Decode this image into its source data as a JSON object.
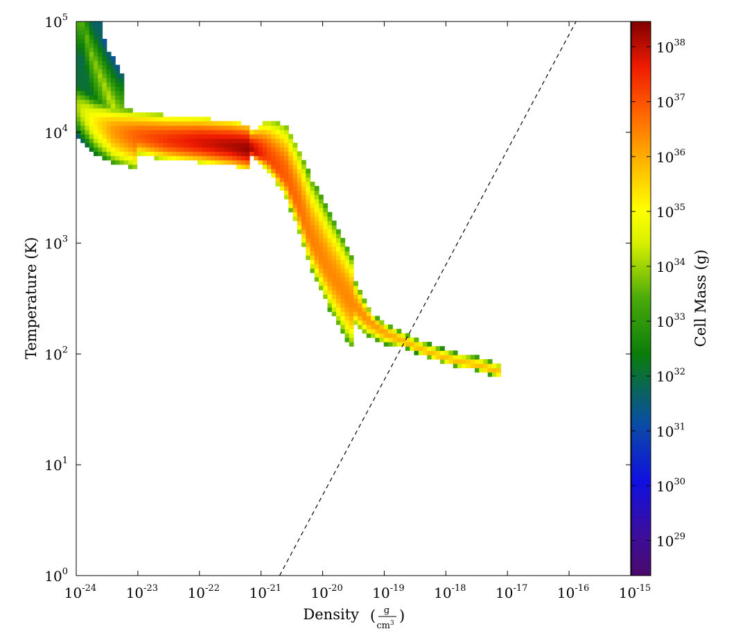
{
  "chart_data": {
    "type": "heatmap",
    "xlabel": "Density",
    "xlabel_unit": {
      "numerator": "g",
      "denominator": "cm",
      "denominator_exp": "3"
    },
    "ylabel": "Temperature  (K)",
    "colorbar_label": "Cell Mass  (g)",
    "x_scale": "log",
    "y_scale": "log",
    "xlim": [
      1e-24,
      1e-15
    ],
    "ylim": [
      1,
      100000
    ],
    "colorbar_range": [
      2.3e+28,
      2.9e+38
    ],
    "colorbar_scale": "log",
    "colormap": "spectral (purple-blue-green-yellow-orange-red-darkred)",
    "x_ticks": [
      {
        "base": "10",
        "exp": "-24",
        "value": 1e-24
      },
      {
        "base": "10",
        "exp": "-23",
        "value": 1e-23
      },
      {
        "base": "10",
        "exp": "-22",
        "value": 1e-22
      },
      {
        "base": "10",
        "exp": "-21",
        "value": 1e-21
      },
      {
        "base": "10",
        "exp": "-20",
        "value": 1e-20
      },
      {
        "base": "10",
        "exp": "-19",
        "value": 1e-19
      },
      {
        "base": "10",
        "exp": "-18",
        "value": 1e-18
      },
      {
        "base": "10",
        "exp": "-17",
        "value": 1e-17
      },
      {
        "base": "10",
        "exp": "-16",
        "value": 1e-16
      },
      {
        "base": "10",
        "exp": "-15",
        "value": 1e-15
      }
    ],
    "y_ticks": [
      {
        "base": "10",
        "exp": "0",
        "value": 1
      },
      {
        "base": "10",
        "exp": "1",
        "value": 10
      },
      {
        "base": "10",
        "exp": "2",
        "value": 100
      },
      {
        "base": "10",
        "exp": "3",
        "value": 1000
      },
      {
        "base": "10",
        "exp": "4",
        "value": 10000
      },
      {
        "base": "10",
        "exp": "5",
        "value": 100000
      }
    ],
    "colorbar_ticks": [
      {
        "base": "10",
        "exp": "29",
        "value": 1e+29
      },
      {
        "base": "10",
        "exp": "30",
        "value": 1e+30
      },
      {
        "base": "10",
        "exp": "31",
        "value": 1e+31
      },
      {
        "base": "10",
        "exp": "32",
        "value": 1e+32
      },
      {
        "base": "10",
        "exp": "33",
        "value": 1e+33
      },
      {
        "base": "10",
        "exp": "34",
        "value": 1e+34
      },
      {
        "base": "10",
        "exp": "35",
        "value": 1e+35
      },
      {
        "base": "10",
        "exp": "36",
        "value": 1e+36
      },
      {
        "base": "10",
        "exp": "37",
        "value": 1e+37
      },
      {
        "base": "10",
        "exp": "38",
        "value": 1e+38
      }
    ],
    "reference_line": {
      "style": "dashed",
      "color": "#000000",
      "points": [
        [
          2e-21,
          1
        ],
        [
          1.3e-16,
          100000
        ]
      ]
    },
    "distribution": {
      "description_points_log10": {
        "ridge": [
          [
            -24.0,
            4.25
          ],
          [
            -23.7,
            4.1
          ],
          [
            -23.4,
            4.02
          ],
          [
            -23.0,
            3.97
          ],
          [
            -22.5,
            3.93
          ],
          [
            -22.0,
            3.91
          ],
          [
            -21.5,
            3.88
          ],
          [
            -21.2,
            3.85
          ],
          [
            -20.9,
            3.78
          ],
          [
            -20.6,
            3.6
          ],
          [
            -20.4,
            3.35
          ],
          [
            -20.2,
            3.05
          ],
          [
            -19.9,
            2.75
          ],
          [
            -19.6,
            2.52
          ],
          [
            -19.3,
            2.33
          ],
          [
            -19.0,
            2.2
          ],
          [
            -18.7,
            2.12
          ],
          [
            -18.4,
            2.04
          ],
          [
            -18.1,
            1.98
          ],
          [
            -17.8,
            1.93
          ],
          [
            -17.5,
            1.9
          ],
          [
            -17.15,
            1.84
          ]
        ],
        "ridge_log10_mass": [
          34.0,
          35.2,
          36.2,
          36.9,
          37.4,
          37.8,
          38.1,
          38.3,
          37.2,
          36.9,
          36.7,
          36.5,
          36.4,
          36.4,
          36.3,
          36.1,
          35.9,
          35.8,
          35.8,
          35.8,
          35.8,
          35.8
        ],
        "high_temperature_arm": [
          [
            -23.9,
            5.0
          ],
          [
            -23.75,
            4.7
          ],
          [
            -23.6,
            4.5
          ],
          [
            -23.45,
            4.3
          ],
          [
            -23.3,
            4.12
          ]
        ]
      }
    }
  }
}
